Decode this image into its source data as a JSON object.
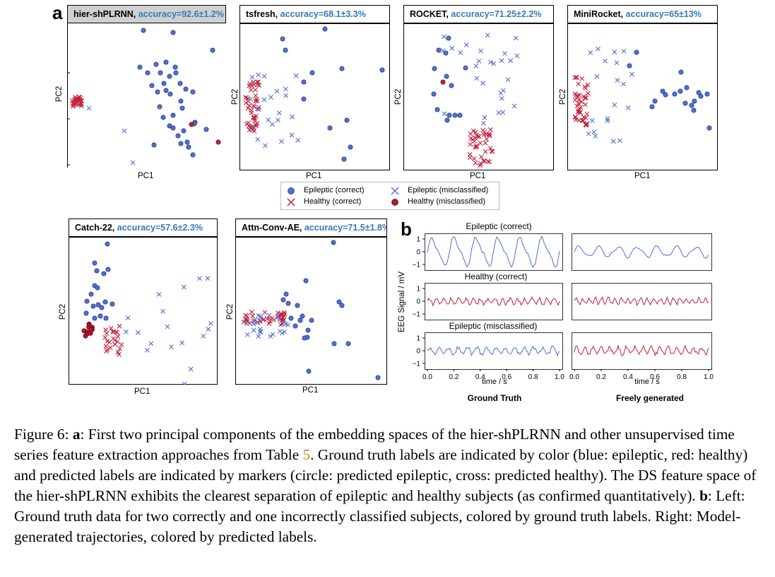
{
  "panel_a_letter": "a",
  "panel_b_letter": "b",
  "colors": {
    "epileptic_blue": "#4f6fd6",
    "healthy_red": "#c0203a",
    "accuracy_blue": "#3a78b8",
    "ref_orange": "#e07b22"
  },
  "plots": [
    {
      "id": "hier",
      "method": "hier-shPLRNN, ",
      "accuracy": "accuracy=92.6±1.2%",
      "xlabel": "PC1",
      "ylabel": "PC2"
    },
    {
      "id": "tsfresh",
      "method": "tsfresh, ",
      "accuracy": "accuracy=68.1±3.3%",
      "xlabel": "PC1",
      "ylabel": "PC2"
    },
    {
      "id": "rocket",
      "method": "ROCKET, ",
      "accuracy": "accuracy=71.25±2.2%",
      "xlabel": "PC1",
      "ylabel": "PC2"
    },
    {
      "id": "minirocket",
      "method": "MiniRocket, ",
      "accuracy": "accuracy=65±13%",
      "xlabel": "PC1",
      "ylabel": "PC2"
    },
    {
      "id": "catch22",
      "method": "Catch-22, ",
      "accuracy": "accuracy=57.6±2.3%",
      "xlabel": "PC1",
      "ylabel": "PC2"
    },
    {
      "id": "attn",
      "method": "Attn-Conv-AE, ",
      "accuracy": "accuracy=71.5±1.8%",
      "xlabel": "PC1",
      "ylabel": "PC2"
    }
  ],
  "legend": {
    "epileptic_correct": "Epileptic (correct)",
    "epileptic_misclassified": "Epileptic (misclassified)",
    "healthy_correct": "Healthy (correct)",
    "healthy_misclassified": "Healthy (misclassified)"
  },
  "eeg": {
    "row_titles": [
      "Epileptic (correct)",
      "Healthy (correct)",
      "Epileptic (misclassified)"
    ],
    "ylabel": "EEG Signal / mV",
    "xlabel": "time / s",
    "yticks": [
      "1",
      "0",
      "−1"
    ],
    "xticks": [
      "0.0",
      "0.2",
      "0.4",
      "0.6",
      "0.8",
      "1.0"
    ],
    "col_left": "Ground Truth",
    "col_right": "Freely generated"
  },
  "caption": {
    "fig_label": "Figure 6: ",
    "a": "a",
    "text1": ": First two principal components of the embedding spaces of the hier-shPLRNN and other unsupervised time series feature extraction approaches from Table ",
    "table_ref": "5",
    "text2": ". Ground truth labels are indicated by color (blue: epileptic, red: healthy) and predicted labels are indicated by markers (circle: predicted epileptic, cross: predicted healthy). The DS feature space of the hier-shPLRNN exhibits the clearest separation of epileptic and healthy subjects (as confirmed quantitatively). ",
    "b": "b",
    "text3": ": Left: Ground truth data for two correctly and one incorrectly classified subjects, colored by ground truth labels. Right: Model-generated trajectories, colored by predicted labels."
  }
}
